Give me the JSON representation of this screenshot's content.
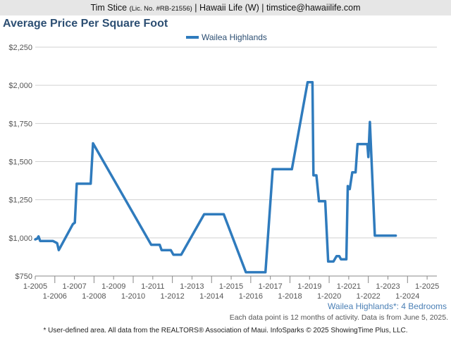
{
  "header": {
    "name": "Tim Stice",
    "license": "(Lic. No. #RB-21556)",
    "rest": "| Hawaii Life (W) | timstice@hawaiilife.com"
  },
  "chart_title": "Average Price Per Square Foot",
  "subtitle_label": "Wailea Highlands*: 4 Bedrooms",
  "note_data": "Each data point is 12 months of activity. Data is from June 5, 2025.",
  "note_footer": "* User-defined area. All data from the REALTORS® Association of Maui. InfoSparks © 2025 ShowingTime Plus, LLC.",
  "colors": {
    "series": "#2f7bbd",
    "grid": "#d0d0d0",
    "title": "#2d4f73"
  },
  "chart_data": {
    "type": "line",
    "title": "Average Price Per Square Foot",
    "xlabel": "",
    "ylabel": "",
    "ylim": [
      750,
      2250
    ],
    "xlim": [
      2005.0,
      2025.5
    ],
    "y_ticks": [
      750,
      1000,
      1250,
      1500,
      1750,
      2000,
      2250
    ],
    "y_tick_labels": [
      "$750",
      "$1,000",
      "$1,250",
      "$1,500",
      "$1,750",
      "$2,000",
      "$2,250"
    ],
    "x_ticks": [
      {
        "x": 2005,
        "label": "1-2005",
        "row": 1
      },
      {
        "x": 2006,
        "label": "1-2006",
        "row": 2
      },
      {
        "x": 2007,
        "label": "1-2007",
        "row": 1
      },
      {
        "x": 2008,
        "label": "1-2008",
        "row": 2
      },
      {
        "x": 2009,
        "label": "1-2009",
        "row": 1
      },
      {
        "x": 2010,
        "label": "1-2010",
        "row": 2
      },
      {
        "x": 2011,
        "label": "1-2011",
        "row": 1
      },
      {
        "x": 2012,
        "label": "1-2012",
        "row": 2
      },
      {
        "x": 2013,
        "label": "1-2013",
        "row": 1
      },
      {
        "x": 2014,
        "label": "1-2014",
        "row": 2
      },
      {
        "x": 2015,
        "label": "1-2015",
        "row": 1
      },
      {
        "x": 2016,
        "label": "1-2016",
        "row": 2
      },
      {
        "x": 2017,
        "label": "1-2017",
        "row": 1
      },
      {
        "x": 2018,
        "label": "1-2018",
        "row": 2
      },
      {
        "x": 2019,
        "label": "1-2019",
        "row": 1
      },
      {
        "x": 2020,
        "label": "1-2020",
        "row": 2
      },
      {
        "x": 2021,
        "label": "1-2021",
        "row": 1
      },
      {
        "x": 2022,
        "label": "1-2022",
        "row": 2
      },
      {
        "x": 2023,
        "label": "1-2023",
        "row": 1
      },
      {
        "x": 2024,
        "label": "1-2024",
        "row": 2
      },
      {
        "x": 2025,
        "label": "1-2025",
        "row": 1
      }
    ],
    "grid": true,
    "legend": "top-center",
    "series": [
      {
        "name": "Wailea Highlands",
        "points": [
          [
            2005.0,
            990
          ],
          [
            2005.1,
            995
          ],
          [
            2005.17,
            1010
          ],
          [
            2005.25,
            980
          ],
          [
            2005.9,
            980
          ],
          [
            2006.05,
            970
          ],
          [
            2006.12,
            965
          ],
          [
            2006.2,
            920
          ],
          [
            2006.92,
            1090
          ],
          [
            2007.02,
            1100
          ],
          [
            2007.12,
            1355
          ],
          [
            2007.83,
            1355
          ],
          [
            2007.95,
            1620
          ],
          [
            2010.92,
            955
          ],
          [
            2011.35,
            955
          ],
          [
            2011.45,
            920
          ],
          [
            2011.92,
            920
          ],
          [
            2012.05,
            890
          ],
          [
            2012.45,
            890
          ],
          [
            2013.62,
            1155
          ],
          [
            2014.62,
            1155
          ],
          [
            2015.75,
            775
          ],
          [
            2016.75,
            775
          ],
          [
            2017.12,
            1450
          ],
          [
            2018.1,
            1450
          ],
          [
            2018.9,
            2020
          ],
          [
            2019.15,
            2020
          ],
          [
            2019.2,
            1410
          ],
          [
            2019.35,
            1410
          ],
          [
            2019.48,
            1240
          ],
          [
            2019.8,
            1240
          ],
          [
            2019.95,
            845
          ],
          [
            2020.22,
            845
          ],
          [
            2020.38,
            880
          ],
          [
            2020.52,
            880
          ],
          [
            2020.6,
            860
          ],
          [
            2020.88,
            860
          ],
          [
            2020.95,
            1340
          ],
          [
            2021.05,
            1320
          ],
          [
            2021.18,
            1430
          ],
          [
            2021.35,
            1430
          ],
          [
            2021.45,
            1615
          ],
          [
            2021.95,
            1615
          ],
          [
            2022.0,
            1530
          ],
          [
            2022.08,
            1760
          ],
          [
            2022.33,
            1015
          ],
          [
            2023.4,
            1015
          ]
        ]
      }
    ]
  }
}
